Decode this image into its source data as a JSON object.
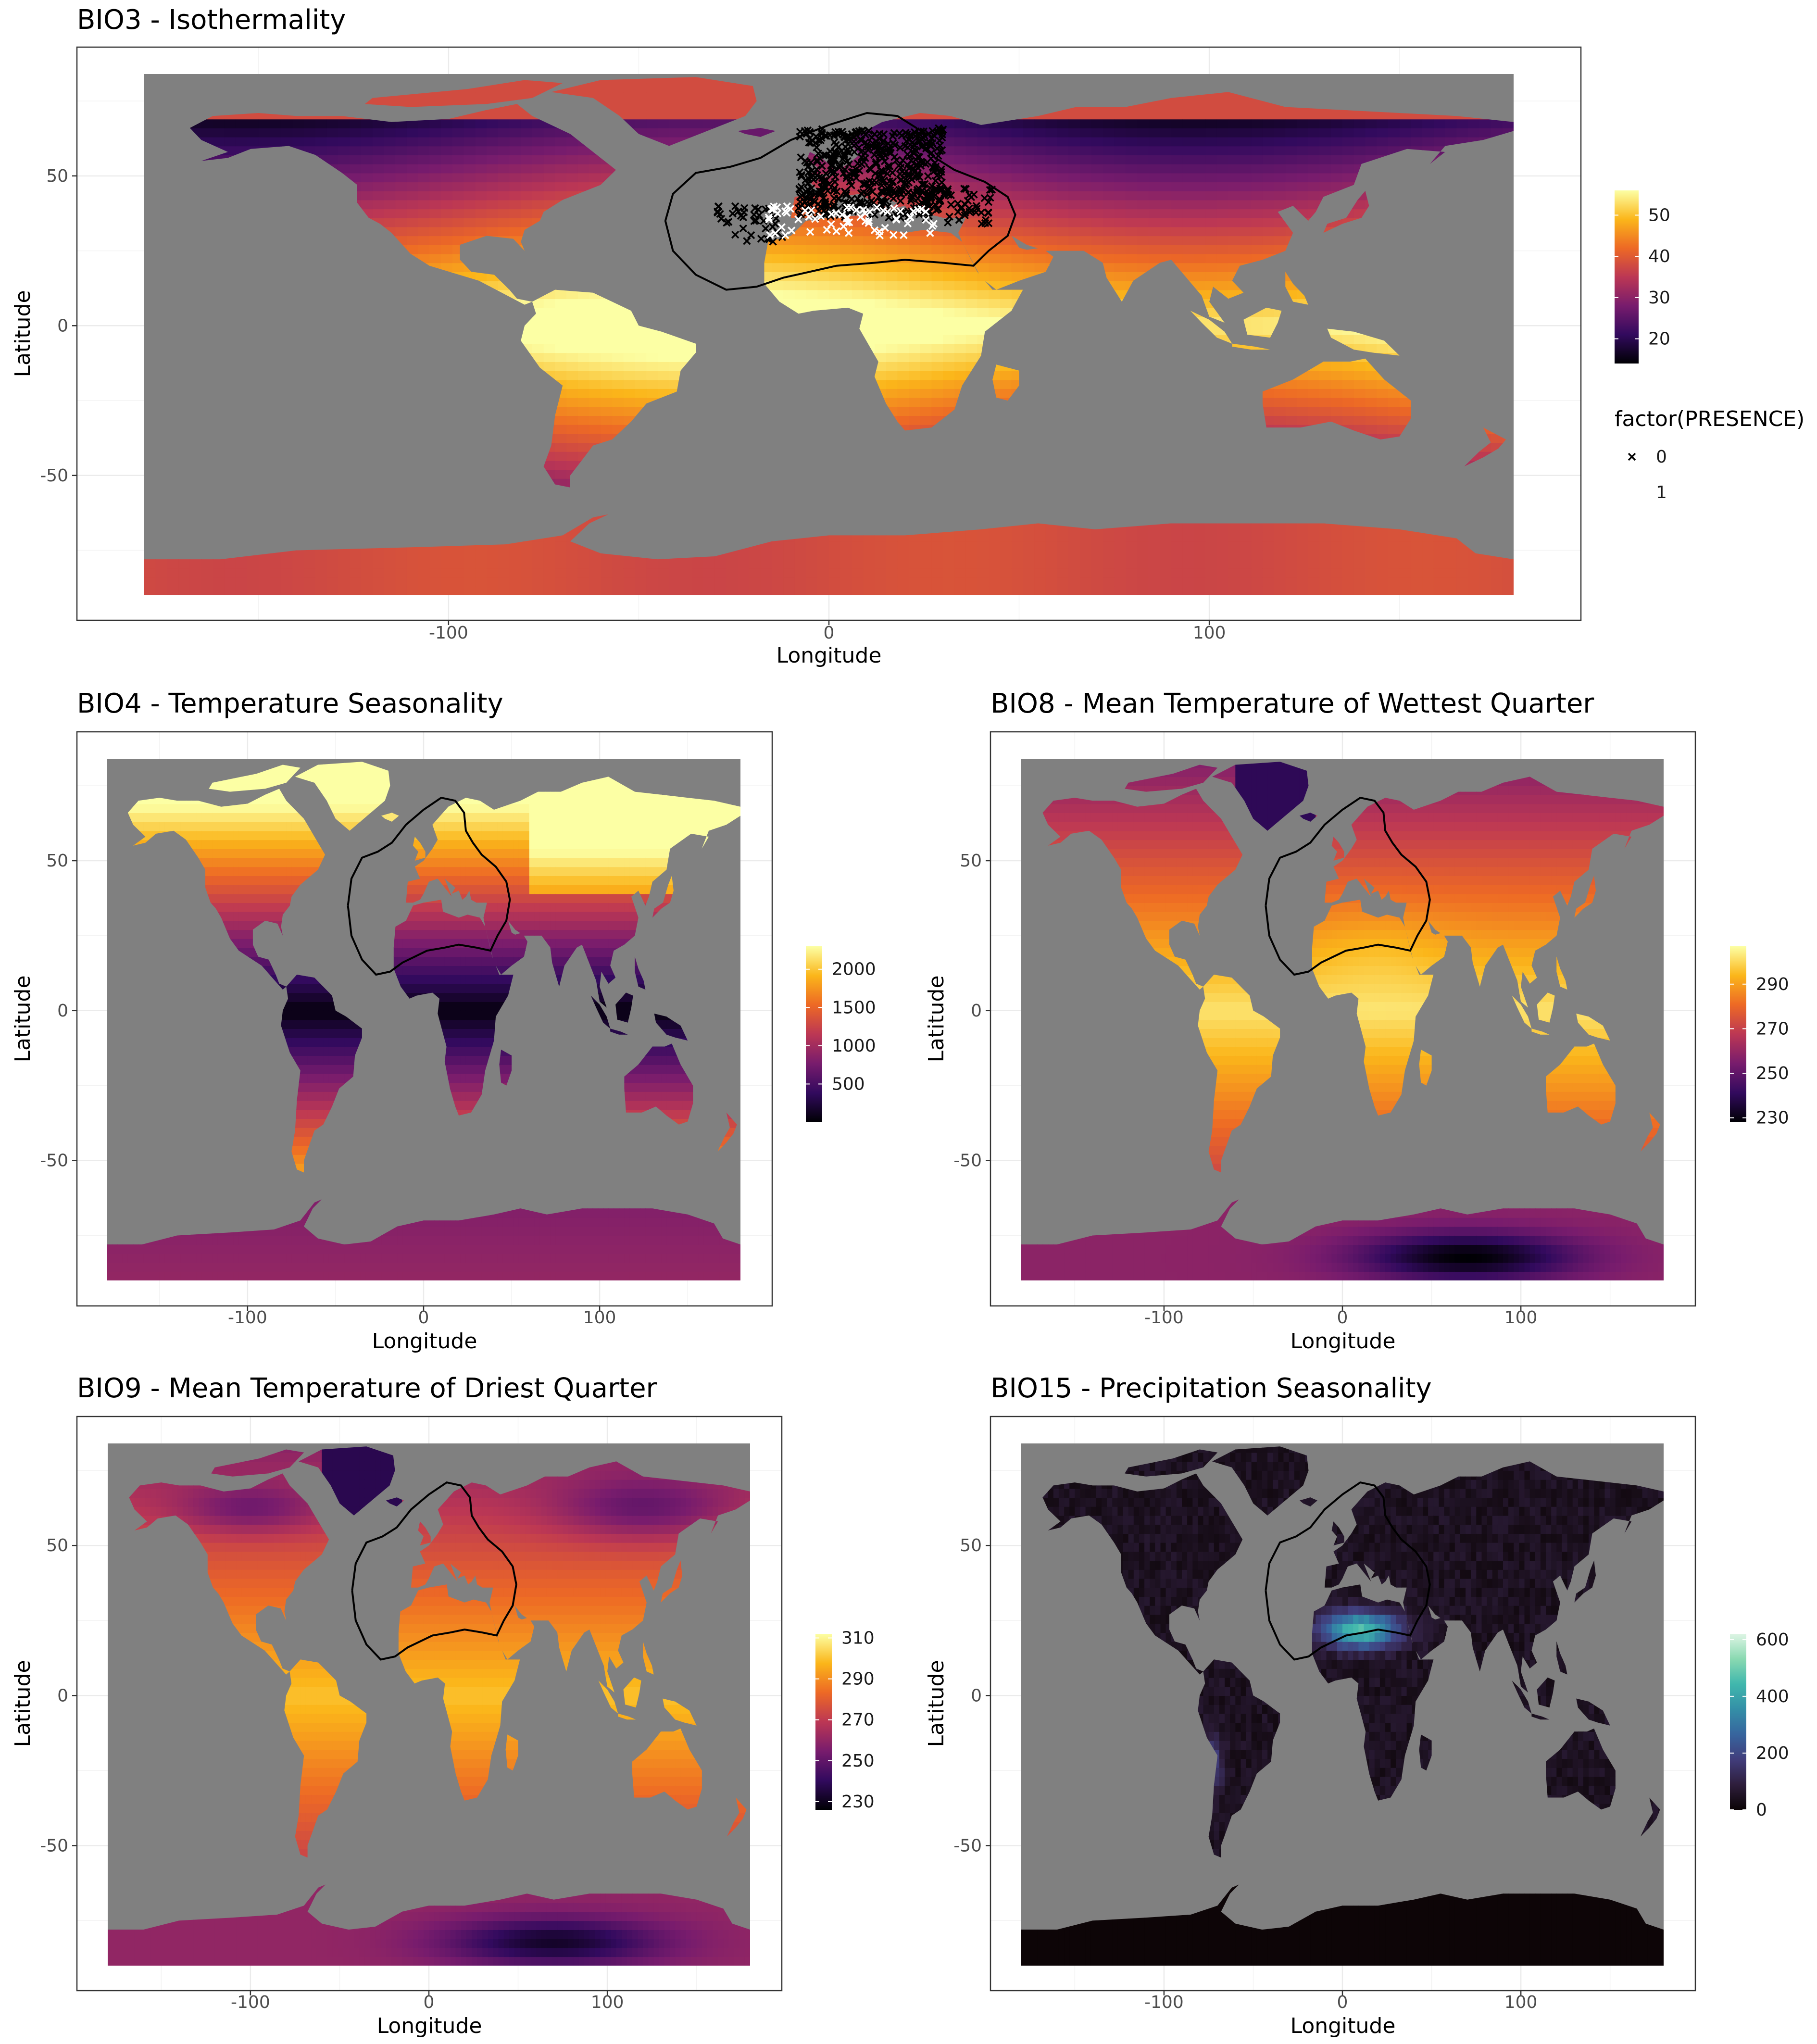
{
  "colors": {
    "ocean": "#808080",
    "inferno": [
      "#000004",
      "#320a5e",
      "#781c6d",
      "#bc3754",
      "#ed6925",
      "#fbb61a",
      "#fcffa4"
    ],
    "mako": [
      "#0b0405",
      "#2e1e3c",
      "#413d7b",
      "#37659e",
      "#348fa7",
      "#40b7ad",
      "#8ad9b1",
      "#def5e5"
    ],
    "absence_marker": "#000000",
    "presence_marker": "#ffffff"
  },
  "chart_data": [
    {
      "type": "raster-map",
      "title": "BIO3 - Isothermality",
      "xlabel": "Longitude",
      "ylabel": "Latitude",
      "xlim": [
        -180,
        180
      ],
      "ylim": [
        -90,
        84
      ],
      "xticks": [
        -100,
        0,
        100
      ],
      "yticks": [
        -50,
        0,
        50
      ],
      "grid": true,
      "palette": "inferno",
      "colorbar": {
        "range": [
          14,
          56
        ],
        "ticks": [
          20,
          30,
          40,
          50
        ]
      },
      "presence_legend": {
        "title": "factor(PRESENCE)",
        "levels": [
          "0",
          "1"
        ]
      },
      "has_points": true,
      "has_region_outline": true
    },
    {
      "type": "raster-map",
      "title": "BIO4 - Temperature Seasonality",
      "xlabel": "Longitude",
      "ylabel": "Latitude",
      "xlim": [
        -180,
        180
      ],
      "ylim": [
        -90,
        84
      ],
      "xticks": [
        -100,
        0,
        100
      ],
      "yticks": [
        -50,
        0,
        50
      ],
      "grid": true,
      "palette": "inferno",
      "colorbar": {
        "range": [
          0,
          2300
        ],
        "ticks": [
          500,
          1000,
          1500,
          2000
        ]
      },
      "has_region_outline": true
    },
    {
      "type": "raster-map",
      "title": "BIO8 - Mean Temperature of Wettest Quarter",
      "xlabel": "Longitude",
      "ylabel": "Latitude",
      "xlim": [
        -180,
        180
      ],
      "ylim": [
        -90,
        84
      ],
      "xticks": [
        -100,
        0,
        100
      ],
      "yticks": [
        -50,
        0,
        50
      ],
      "grid": true,
      "palette": "inferno",
      "colorbar": {
        "range": [
          228,
          307
        ],
        "ticks": [
          230,
          250,
          270,
          290
        ]
      },
      "has_region_outline": true
    },
    {
      "type": "raster-map",
      "title": "BIO9 - Mean Temperature of Driest Quarter",
      "xlabel": "Longitude",
      "ylabel": "Latitude",
      "xlim": [
        -180,
        180
      ],
      "ylim": [
        -90,
        84
      ],
      "xticks": [
        -100,
        0,
        100
      ],
      "yticks": [
        -50,
        0,
        50
      ],
      "grid": true,
      "palette": "inferno",
      "colorbar": {
        "range": [
          226,
          312
        ],
        "ticks": [
          230,
          250,
          270,
          290,
          310
        ]
      },
      "has_region_outline": true
    },
    {
      "type": "raster-map",
      "title": "BIO15 - Precipitation Seasonality",
      "xlabel": "Longitude",
      "ylabel": "Latitude",
      "xlim": [
        -180,
        180
      ],
      "ylim": [
        -90,
        84
      ],
      "xticks": [
        -100,
        0,
        100
      ],
      "yticks": [
        -50,
        0,
        50
      ],
      "grid": true,
      "palette": "mako",
      "colorbar": {
        "range": [
          0,
          620
        ],
        "ticks": [
          0,
          200,
          400,
          600
        ]
      },
      "has_region_outline": true
    }
  ]
}
